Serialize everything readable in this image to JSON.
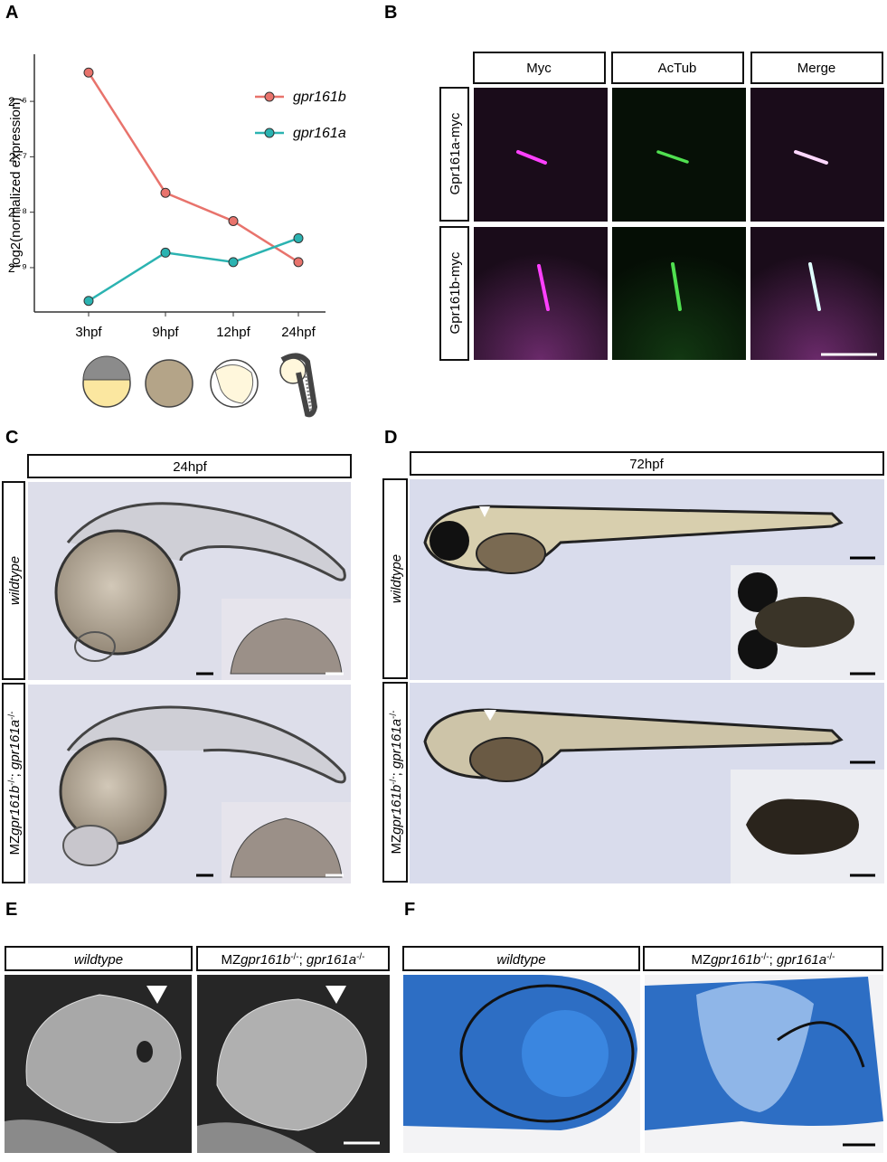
{
  "panel_labels": [
    "A",
    "B",
    "C",
    "D",
    "E",
    "F"
  ],
  "chart_data": {
    "type": "line",
    "ylabel": "log2(normalized expression)",
    "categories": [
      "3hpf",
      "9hpf",
      "12hpf",
      "24hpf"
    ],
    "series": [
      {
        "name": "gpr161b",
        "color": "#e8736c",
        "values": [
          -5.48,
          -7.65,
          -8.16,
          -8.9
        ]
      },
      {
        "name": "gpr161a",
        "color": "#2bb3b1",
        "values": [
          -9.6,
          -8.73,
          -8.9,
          -8.47
        ]
      }
    ],
    "ylim": [
      -9.8,
      -5.15
    ],
    "yticks": [
      {
        "value": -6,
        "label": "2⁻⁶"
      },
      {
        "value": -7,
        "label": "2⁻⁷"
      },
      {
        "value": -8,
        "label": "2⁻⁸"
      },
      {
        "value": -9,
        "label": "2⁻⁹"
      }
    ]
  },
  "B": {
    "columns": [
      "Myc",
      "AcTub",
      "Merge"
    ],
    "rows": [
      "Gpr161a-myc",
      "Gpr161b-myc"
    ]
  },
  "C": {
    "header": "24hpf",
    "rows": [
      [
        {
          "text": "wildtype",
          "italic": true
        }
      ],
      [
        {
          "text": "MZ"
        },
        {
          "text": "gpr161b",
          "italic": true
        },
        {
          "text": "-/-",
          "sup": true
        },
        {
          "text": "; "
        },
        {
          "text": "gpr161a",
          "italic": true
        },
        {
          "text": "-/-",
          "sup": true
        }
      ]
    ]
  },
  "D": {
    "header": "72hpf",
    "rows": [
      [
        {
          "text": "wildtype",
          "italic": true
        }
      ],
      [
        {
          "text": "MZ"
        },
        {
          "text": "gpr161b",
          "italic": true
        },
        {
          "text": "-/-",
          "sup": true
        },
        {
          "text": "; "
        },
        {
          "text": "gpr161a",
          "italic": true
        },
        {
          "text": "-/-",
          "sup": true
        }
      ]
    ]
  },
  "E": {
    "columns": [
      [
        {
          "text": "wildtype",
          "italic": true
        }
      ],
      [
        {
          "text": "MZ"
        },
        {
          "text": "gpr161b",
          "italic": true
        },
        {
          "text": "-/-",
          "sup": true
        },
        {
          "text": "; "
        },
        {
          "text": "gpr161a",
          "italic": true
        },
        {
          "text": "-/-",
          "sup": true
        }
      ]
    ]
  },
  "F": {
    "columns": [
      [
        {
          "text": "wildtype",
          "italic": true
        }
      ],
      [
        {
          "text": "MZ"
        },
        {
          "text": "gpr161b",
          "italic": true
        },
        {
          "text": "-/-",
          "sup": true
        },
        {
          "text": "; "
        },
        {
          "text": "gpr161a",
          "italic": true
        },
        {
          "text": "-/-",
          "sup": true
        }
      ]
    ]
  }
}
